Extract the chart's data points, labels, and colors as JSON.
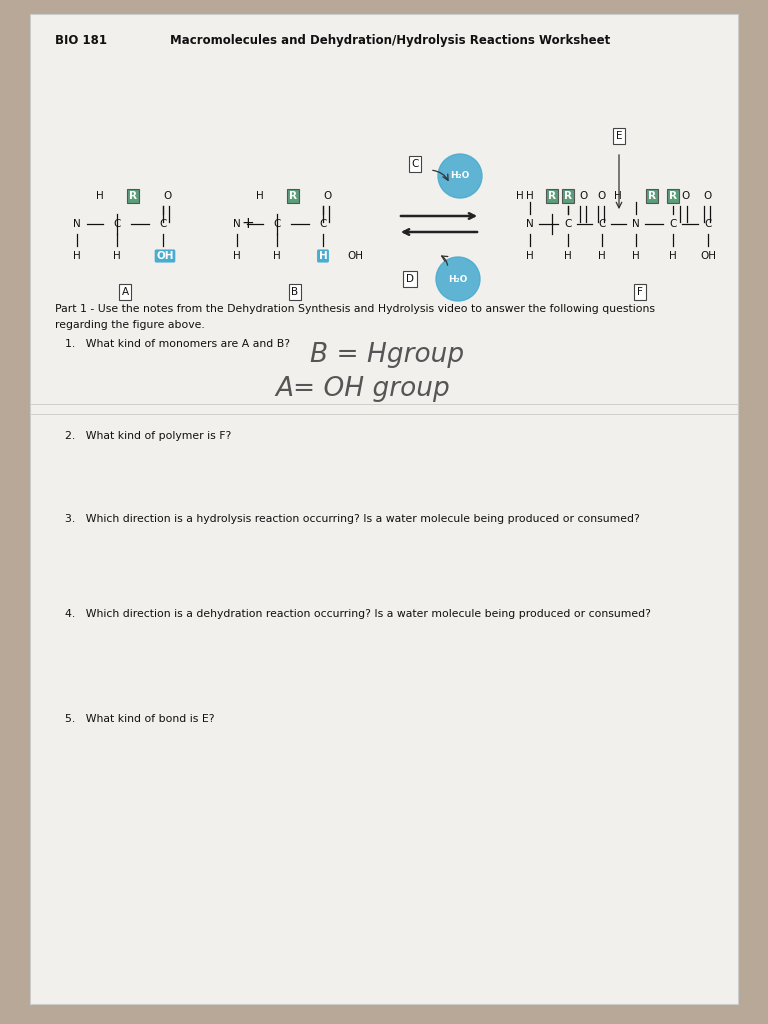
{
  "bg_color": "#b8a898",
  "paper_color": "#f2f0ed",
  "header_course": "BIO 181",
  "header_title": "Macromolecules and Dehydration/Hydrolysis Reactions Worksheet",
  "part1_intro": "Part 1 - Use the notes from the Dehydration Synthesis and Hydrolysis video to answer the following questions\nregarding the figure above.",
  "questions": [
    "1.   What kind of monomers are A and B?",
    "2.   What kind of polymer is F?",
    "3.   Which direction is a hydrolysis reaction occurring? Is a water molecule being produced or consumed?",
    "4.   Which direction is a dehydration reaction occurring? Is a water molecule being produced or consumed?",
    "5.   What kind of bond is E?"
  ],
  "answer1_line1": "B = Hgroup",
  "answer1_line2": "A= OH group",
  "green_color": "#5a9e7a",
  "blue_bubble_color": "#4aaccf"
}
